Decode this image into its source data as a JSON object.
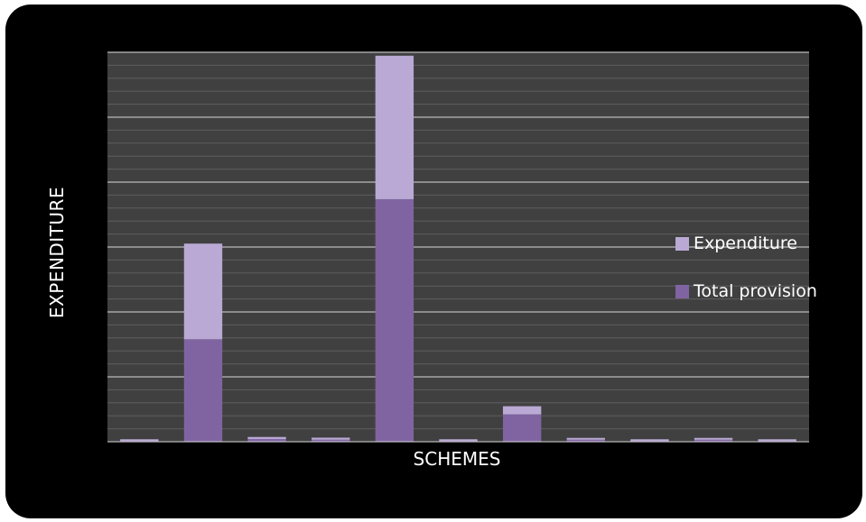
{
  "chart_data": {
    "type": "bar",
    "stacked": true,
    "xlabel": "SCHEMES",
    "ylabel": "EXPENDITURE",
    "grid": true,
    "legend_position": "right",
    "ylim": [
      0,
      5.7
    ],
    "categories": [
      "",
      "",
      "",
      "",
      "",
      "",
      "",
      "",
      "",
      "",
      ""
    ],
    "series": [
      {
        "name": "Total provision",
        "color": "#8064a2",
        "values": [
          0.01,
          1.5,
          0.04,
          0.03,
          3.55,
          0.01,
          0.4,
          0.03,
          0.01,
          0.03,
          0.01
        ]
      },
      {
        "name": "Expenditure",
        "color": "#b9a9d4",
        "values": [
          0.01,
          1.4,
          0.03,
          0.03,
          2.1,
          0.01,
          0.12,
          0.02,
          0.01,
          0.02,
          0.01
        ]
      }
    ]
  }
}
